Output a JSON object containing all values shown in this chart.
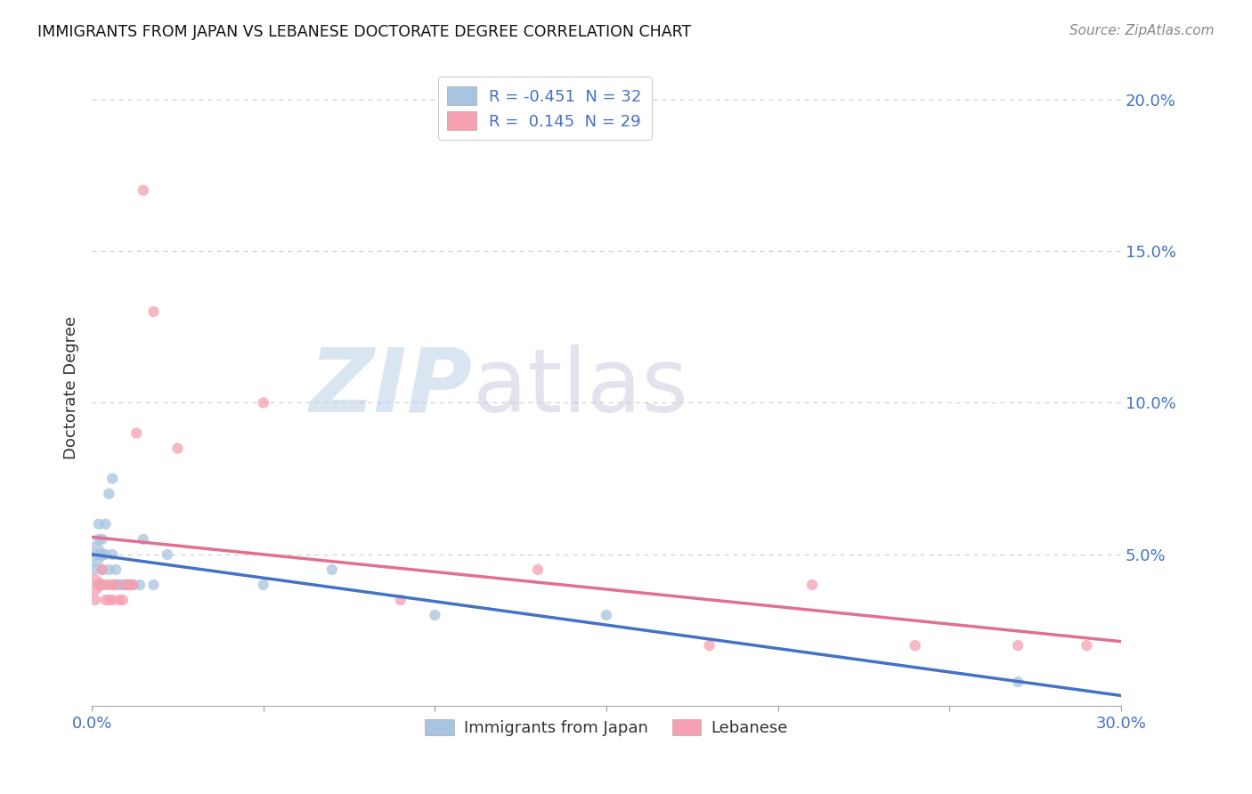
{
  "title": "IMMIGRANTS FROM JAPAN VS LEBANESE DOCTORATE DEGREE CORRELATION CHART",
  "source": "Source: ZipAtlas.com",
  "ylabel": "Doctorate Degree",
  "xlim": [
    0.0,
    0.3
  ],
  "ylim": [
    0.0,
    0.21
  ],
  "japan_R": -0.451,
  "japan_N": 32,
  "lebanese_R": 0.145,
  "lebanese_N": 29,
  "japan_color": "#a8c4e0",
  "lebanese_color": "#f4a0b0",
  "japan_line_color": "#4472c4",
  "lebanese_line_color": "#e07090",
  "japan_x": [
    0.0005,
    0.001,
    0.0015,
    0.002,
    0.002,
    0.0025,
    0.003,
    0.003,
    0.003,
    0.004,
    0.004,
    0.004,
    0.005,
    0.005,
    0.006,
    0.006,
    0.007,
    0.007,
    0.008,
    0.009,
    0.01,
    0.011,
    0.012,
    0.014,
    0.015,
    0.018,
    0.022,
    0.05,
    0.07,
    0.1,
    0.15,
    0.27
  ],
  "japan_y": [
    0.05,
    0.045,
    0.05,
    0.055,
    0.06,
    0.05,
    0.045,
    0.05,
    0.055,
    0.04,
    0.05,
    0.06,
    0.045,
    0.07,
    0.075,
    0.05,
    0.04,
    0.045,
    0.04,
    0.04,
    0.04,
    0.04,
    0.04,
    0.04,
    0.055,
    0.04,
    0.05,
    0.04,
    0.045,
    0.03,
    0.03,
    0.008
  ],
  "japan_sizes": [
    400,
    80,
    80,
    80,
    80,
    80,
    80,
    80,
    80,
    80,
    80,
    80,
    80,
    80,
    80,
    80,
    80,
    80,
    80,
    80,
    80,
    80,
    80,
    80,
    80,
    80,
    80,
    80,
    80,
    80,
    80,
    80
  ],
  "lebanese_x": [
    0.0005,
    0.001,
    0.002,
    0.002,
    0.003,
    0.003,
    0.004,
    0.005,
    0.005,
    0.006,
    0.006,
    0.007,
    0.008,
    0.009,
    0.01,
    0.011,
    0.012,
    0.013,
    0.015,
    0.018,
    0.025,
    0.05,
    0.09,
    0.13,
    0.18,
    0.21,
    0.24,
    0.27,
    0.29
  ],
  "lebanese_y": [
    0.04,
    0.035,
    0.04,
    0.04,
    0.04,
    0.045,
    0.035,
    0.04,
    0.035,
    0.035,
    0.04,
    0.04,
    0.035,
    0.035,
    0.04,
    0.04,
    0.04,
    0.09,
    0.17,
    0.13,
    0.085,
    0.1,
    0.035,
    0.045,
    0.02,
    0.04,
    0.02,
    0.02,
    0.02
  ],
  "lebanese_sizes": [
    300,
    80,
    80,
    80,
    80,
    80,
    80,
    80,
    80,
    80,
    80,
    80,
    80,
    80,
    80,
    80,
    80,
    80,
    80,
    80,
    80,
    80,
    80,
    80,
    80,
    80,
    80,
    80,
    80
  ],
  "watermark_zip": "ZIP",
  "watermark_atlas": "atlas",
  "background_color": "#ffffff",
  "grid_color": "#d0d0d0",
  "axis_label_color": "#4472c4",
  "text_color": "#333333"
}
